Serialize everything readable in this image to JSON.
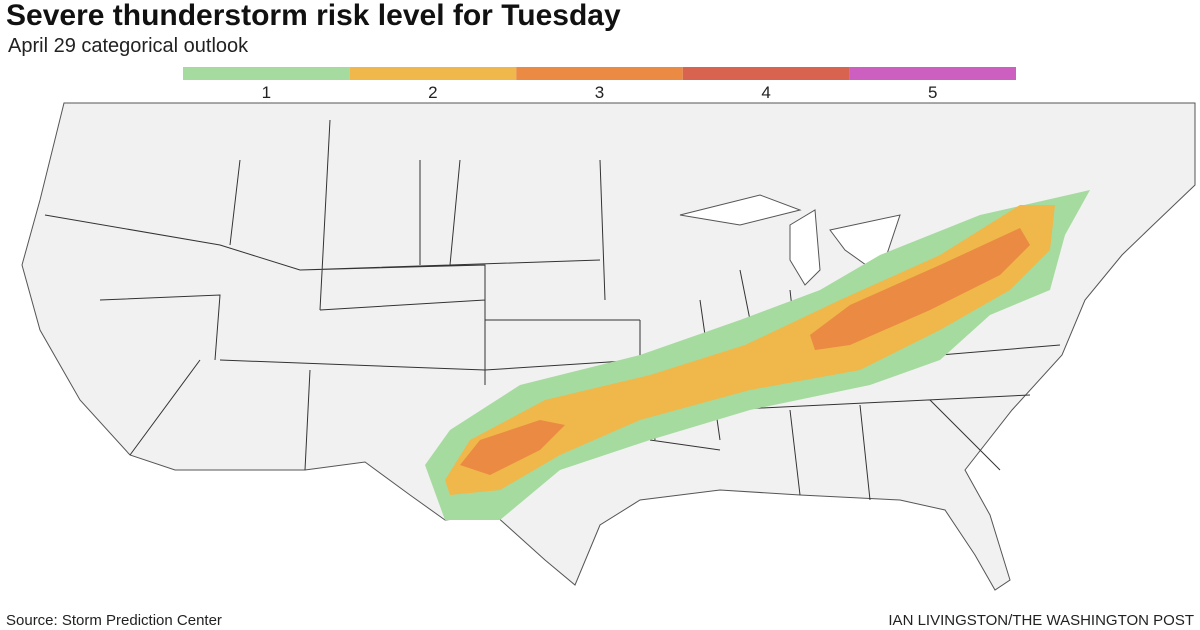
{
  "header": {
    "title": "Severe thunderstorm risk level for Tuesday",
    "subtitle": "April 29 categorical outlook"
  },
  "legend": [
    {
      "label": "1",
      "color": "#a6dba0"
    },
    {
      "label": "2",
      "color": "#f0b74a"
    },
    {
      "label": "3",
      "color": "#ea8a43"
    },
    {
      "label": "4",
      "color": "#d8634f"
    },
    {
      "label": "5",
      "color": "#cc5fbf"
    }
  ],
  "footer": {
    "source": "Source: Storm Prediction Center",
    "credit": "IAN LIVINGSTON/THE WASHINGTON POST"
  }
}
